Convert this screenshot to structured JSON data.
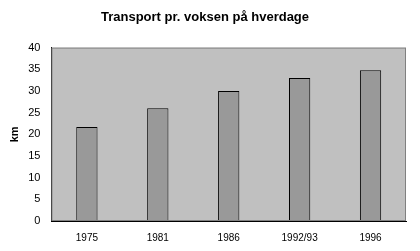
{
  "chart_data": {
    "type": "bar",
    "title": "Transport pr. voksen på hverdage",
    "ylabel": "km",
    "categories": [
      "1975",
      "1981",
      "1986",
      "1992/93",
      "1996"
    ],
    "values": [
      21.7,
      26,
      30,
      33,
      34.8
    ],
    "color": "#999999",
    "ylim": [
      0,
      40
    ],
    "yticks": [
      0,
      5,
      10,
      15,
      20,
      25,
      30,
      35,
      40
    ],
    "grid": false
  }
}
